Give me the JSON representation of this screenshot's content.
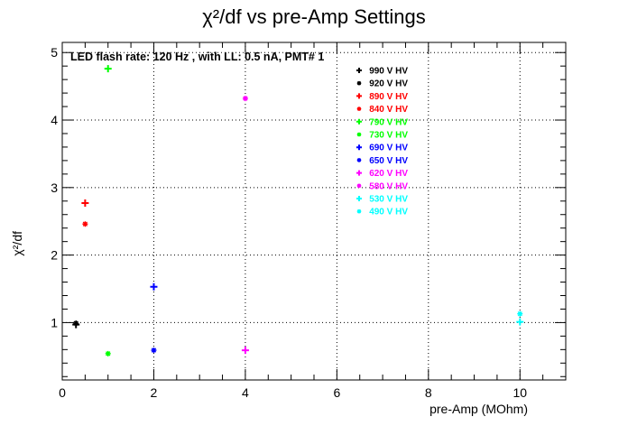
{
  "chart_data": {
    "type": "scatter",
    "title": "χ²/df vs pre-Amp Settings",
    "xlabel": "pre-Amp (MOhm)",
    "ylabel": "χ²/df",
    "annotation": "LED flash rate: 120 Hz , with LL: 0.5 nA, PMT# 1",
    "xlim": [
      0,
      11
    ],
    "ylim": [
      0.15,
      5.15
    ],
    "x_ticks": [
      0,
      2,
      4,
      6,
      8,
      10
    ],
    "x_tick_labels": [
      "0",
      "2",
      "4",
      "6",
      "8",
      "10"
    ],
    "y_ticks": [
      1,
      2,
      3,
      4,
      5
    ],
    "y_tick_labels": [
      "1",
      "2",
      "3",
      "4",
      "5"
    ],
    "grid": true,
    "legend_position": "top-right",
    "series": [
      {
        "name": "990 V HV",
        "color": "#000000",
        "marker": "plus",
        "points": [
          [
            0.3,
            0.97
          ]
        ]
      },
      {
        "name": "920 V HV",
        "color": "#000000",
        "marker": "star",
        "points": [
          [
            0.3,
            0.99
          ]
        ]
      },
      {
        "name": "890 V HV",
        "color": "#ff0000",
        "marker": "plus",
        "points": [
          [
            0.5,
            2.77
          ]
        ]
      },
      {
        "name": "840 V HV",
        "color": "#ff0000",
        "marker": "star",
        "points": [
          [
            0.5,
            2.46
          ]
        ]
      },
      {
        "name": "790 V HV",
        "color": "#00ff00",
        "marker": "plus",
        "points": [
          [
            1,
            4.76
          ]
        ]
      },
      {
        "name": "730 V HV",
        "color": "#00ff00",
        "marker": "star",
        "points": [
          [
            1,
            0.54
          ]
        ]
      },
      {
        "name": "690 V HV",
        "color": "#0000ff",
        "marker": "plus",
        "points": [
          [
            2,
            1.53
          ]
        ]
      },
      {
        "name": "650 V HV",
        "color": "#0000ff",
        "marker": "star",
        "points": [
          [
            2,
            0.59
          ]
        ]
      },
      {
        "name": "620 V HV",
        "color": "#ff00ff",
        "marker": "plus",
        "points": [
          [
            4,
            0.59
          ]
        ]
      },
      {
        "name": "580 V HV",
        "color": "#ff00ff",
        "marker": "star",
        "points": [
          [
            4,
            4.32
          ]
        ]
      },
      {
        "name": "530 V HV",
        "color": "#00ffff",
        "marker": "plus",
        "points": [
          [
            10,
            1.01
          ]
        ]
      },
      {
        "name": "490 V HV",
        "color": "#00ffff",
        "marker": "star",
        "points": [
          [
            10,
            1.13
          ]
        ]
      }
    ]
  }
}
